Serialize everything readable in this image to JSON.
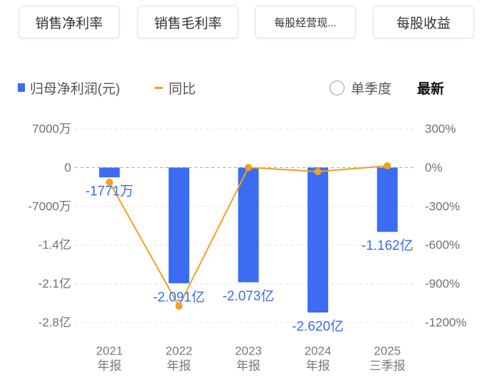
{
  "tabs": [
    {
      "label": "销售净利率"
    },
    {
      "label": "销售毛利率"
    },
    {
      "label": "每股经营现..."
    },
    {
      "label": "每股收益"
    }
  ],
  "controls": {
    "single_quarter": {
      "label": "单季度",
      "checked": false,
      "icon": "radio-icon"
    },
    "latest": {
      "label": "最新"
    }
  },
  "chart_data": {
    "type": "bar",
    "categories": [
      "2021",
      "2022",
      "2023",
      "2024",
      "2025"
    ],
    "category_sublabels": [
      "年报",
      "年报",
      "年报",
      "年报",
      "三季报"
    ],
    "series": [
      {
        "name": "归母净利润(元)",
        "type": "bar",
        "axis": "left",
        "color": "#3B6CF3",
        "values": [
          -17710000,
          -209100000,
          -207300000,
          -262000000,
          -116200000
        ],
        "data_labels": [
          "-1771万",
          "-2.091亿",
          "-2.073亿",
          "-2.620亿",
          "-1.162亿"
        ]
      },
      {
        "name": "同比",
        "type": "line",
        "axis": "right",
        "color": "#F0A21B",
        "values": [
          -113,
          -1073,
          1,
          -31,
          13
        ]
      }
    ],
    "y_left": {
      "ylim": [
        -280000000,
        70000000
      ],
      "ticks": [
        70000000,
        0,
        -70000000,
        -140000000,
        -210000000,
        -280000000
      ],
      "tick_labels": [
        "7000万",
        "0",
        "-7000万",
        "-1.4亿",
        "-2.1亿",
        "-2.8亿"
      ]
    },
    "y_right": {
      "ylim": [
        -1200,
        300
      ],
      "ticks": [
        300,
        0,
        -300,
        -600,
        -900,
        -1200
      ],
      "tick_labels": [
        "300%",
        "0%",
        "-300%",
        "-600%",
        "-900%",
        "-1200%"
      ]
    },
    "grid": true,
    "legend": "top-left"
  }
}
